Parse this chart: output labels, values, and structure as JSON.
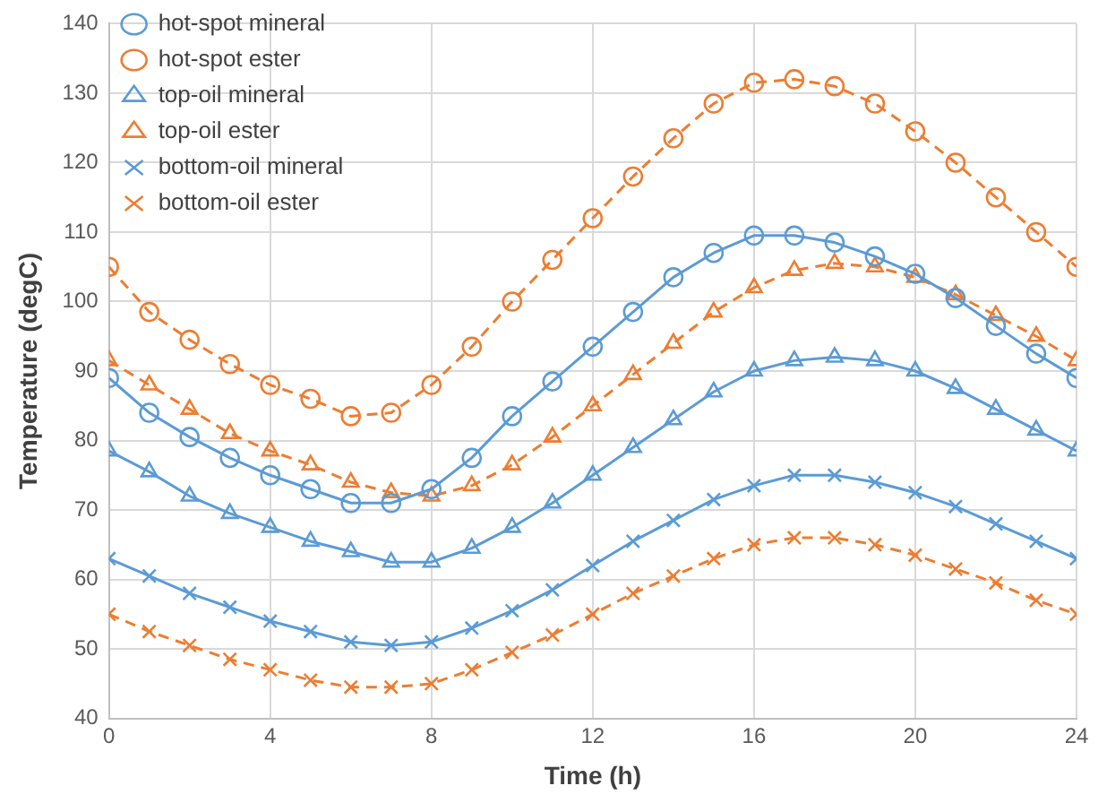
{
  "chart_data": {
    "type": "line",
    "xlabel": "Time (h)",
    "ylabel": "Temperature (degC)",
    "x": [
      0,
      1,
      2,
      3,
      4,
      5,
      6,
      7,
      8,
      9,
      10,
      11,
      12,
      13,
      14,
      15,
      16,
      17,
      18,
      19,
      20,
      21,
      22,
      23,
      24
    ],
    "xlim": [
      0,
      24
    ],
    "xticks": [
      0,
      4,
      8,
      12,
      16,
      20,
      24
    ],
    "ylim": [
      40,
      140
    ],
    "yticks": [
      40,
      50,
      60,
      70,
      80,
      90,
      100,
      110,
      120,
      130,
      140
    ],
    "grid": true,
    "legend": "top left",
    "series": [
      {
        "name": "hot-spot mineral",
        "color": "#5b9bd5",
        "marker": "circle",
        "line_style": "solid",
        "values": [
          89,
          84,
          80.5,
          77.5,
          75,
          73,
          71,
          71,
          73,
          77.5,
          83.5,
          88.5,
          93.5,
          98.5,
          103.5,
          107,
          109.5,
          109.5,
          108.5,
          106.5,
          104,
          100.5,
          96.5,
          92.5,
          89
        ]
      },
      {
        "name": "hot-spot ester",
        "color": "#ed7d31",
        "marker": "circle",
        "line_style": "dashed",
        "values": [
          105,
          98.5,
          94.5,
          91,
          88,
          86,
          83.5,
          84,
          88,
          93.5,
          100,
          106,
          112,
          118,
          123.5,
          128.5,
          131.5,
          132,
          131,
          128.5,
          124.5,
          120,
          115,
          110,
          105
        ]
      },
      {
        "name": "top-oil mineral",
        "color": "#5b9bd5",
        "marker": "triangle",
        "line_style": "solid",
        "values": [
          78.5,
          75.5,
          72,
          69.5,
          67.5,
          65.5,
          64,
          62.5,
          62.5,
          64.5,
          67.5,
          71,
          75,
          79,
          83,
          87,
          90,
          91.5,
          92,
          91.5,
          90,
          87.5,
          84.5,
          81.5,
          78.5
        ]
      },
      {
        "name": "top-oil ester",
        "color": "#ed7d31",
        "marker": "triangle",
        "line_style": "dashed",
        "values": [
          91.5,
          88,
          84.5,
          81,
          78.5,
          76.5,
          74,
          72.5,
          72,
          73.5,
          76.5,
          80.5,
          85,
          89.5,
          94,
          98.5,
          102,
          104.5,
          105.5,
          105,
          103.5,
          101,
          98,
          95,
          91.5
        ]
      },
      {
        "name": "bottom-oil mineral",
        "color": "#5b9bd5",
        "marker": "cross",
        "line_style": "solid",
        "values": [
          63,
          60.5,
          58,
          56,
          54,
          52.5,
          51,
          50.5,
          51,
          53,
          55.5,
          58.5,
          62,
          65.5,
          68.5,
          71.5,
          73.5,
          75,
          75,
          74,
          72.5,
          70.5,
          68,
          65.5,
          63
        ]
      },
      {
        "name": "bottom-oil ester",
        "color": "#ed7d31",
        "marker": "cross",
        "line_style": "dashed",
        "values": [
          55,
          52.5,
          50.5,
          48.5,
          47,
          45.5,
          44.5,
          44.5,
          45,
          47,
          49.5,
          52,
          55,
          58,
          60.5,
          63,
          65,
          66,
          66,
          65,
          63.5,
          61.5,
          59.5,
          57,
          55
        ]
      }
    ]
  }
}
